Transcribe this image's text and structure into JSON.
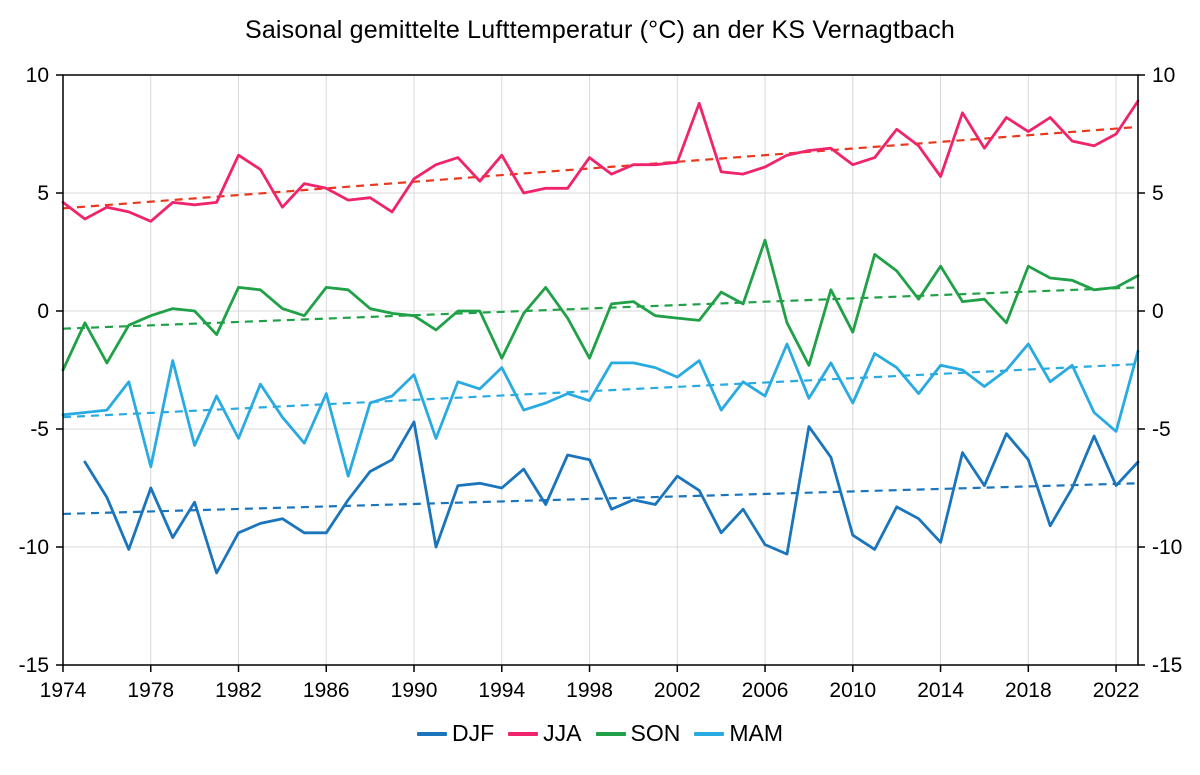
{
  "chart_data": {
    "type": "line",
    "title": "Saisonal gemittelte Lufttemperatur (°C) an der KS Vernagtbach",
    "xlabel": "",
    "ylabel": "",
    "xlim": [
      1974,
      2023
    ],
    "ylim": [
      -15,
      10
    ],
    "x_ticks": [
      1974,
      1978,
      1982,
      1986,
      1990,
      1994,
      1998,
      2002,
      2006,
      2010,
      2014,
      2018,
      2022
    ],
    "y_ticks": [
      -15,
      -10,
      -5,
      0,
      5,
      10
    ],
    "grid": true,
    "grid_color": "#d9d9d9",
    "axis_color": "#000000",
    "legend_position": "bottom",
    "x": [
      1974,
      1975,
      1976,
      1977,
      1978,
      1979,
      1980,
      1981,
      1982,
      1983,
      1984,
      1985,
      1986,
      1987,
      1988,
      1989,
      1990,
      1991,
      1992,
      1993,
      1994,
      1995,
      1996,
      1997,
      1998,
      1999,
      2000,
      2001,
      2002,
      2003,
      2004,
      2005,
      2006,
      2007,
      2008,
      2009,
      2010,
      2011,
      2012,
      2013,
      2014,
      2015,
      2016,
      2017,
      2018,
      2019,
      2020,
      2021,
      2022,
      2023
    ],
    "series": [
      {
        "name": "DJF",
        "color": "#1b75bc",
        "values": [
          null,
          -6.4,
          -7.9,
          -10.1,
          -7.5,
          -9.6,
          -8.1,
          -11.1,
          -9.4,
          -9.0,
          -8.8,
          -9.4,
          -9.4,
          -8.0,
          -6.8,
          -6.3,
          -4.7,
          -10.0,
          -7.4,
          -7.3,
          -7.5,
          -6.7,
          -8.2,
          -6.1,
          -6.3,
          -8.4,
          -8.0,
          -8.2,
          -7.0,
          -7.6,
          -9.4,
          -8.4,
          -9.9,
          -10.3,
          -4.9,
          -6.2,
          -9.5,
          -10.1,
          -8.3,
          -8.8,
          -9.8,
          -6.0,
          -7.4,
          -5.2,
          -6.3,
          -9.1,
          -7.5,
          -5.3,
          -7.4,
          -6.4
        ]
      },
      {
        "name": "JJA",
        "color": "#f0246c",
        "values": [
          4.6,
          3.9,
          4.4,
          4.2,
          3.8,
          4.6,
          4.5,
          4.6,
          6.6,
          6.0,
          4.4,
          5.4,
          5.2,
          4.7,
          4.8,
          4.2,
          5.6,
          6.2,
          6.5,
          5.5,
          6.6,
          5.0,
          5.2,
          5.2,
          6.5,
          5.8,
          6.2,
          6.2,
          6.3,
          8.8,
          5.9,
          5.8,
          6.1,
          6.6,
          6.8,
          6.9,
          6.2,
          6.5,
          7.7,
          7.0,
          5.7,
          8.4,
          6.9,
          8.2,
          7.6,
          8.2,
          7.2,
          7.0,
          7.5,
          8.9
        ]
      },
      {
        "name": "SON",
        "color": "#21a147",
        "values": [
          -2.5,
          -0.5,
          -2.2,
          -0.6,
          -0.2,
          0.1,
          0.0,
          -1.0,
          1.0,
          0.9,
          0.1,
          -0.2,
          1.0,
          0.9,
          0.1,
          -0.1,
          -0.2,
          -0.8,
          0.0,
          0.0,
          -2.0,
          -0.1,
          1.0,
          -0.3,
          -2.0,
          0.3,
          0.4,
          -0.2,
          -0.3,
          -0.4,
          0.8,
          0.3,
          3.0,
          -0.5,
          -2.3,
          0.9,
          -0.9,
          2.4,
          1.7,
          0.5,
          1.9,
          0.4,
          0.5,
          -0.5,
          1.9,
          1.4,
          1.3,
          0.9,
          1.0,
          1.5
        ]
      },
      {
        "name": "MAM",
        "color": "#29abe2",
        "values": [
          -4.4,
          -4.3,
          -4.2,
          -3.0,
          -6.6,
          -2.1,
          -5.7,
          -3.6,
          -5.4,
          -3.1,
          -4.5,
          -5.6,
          -3.5,
          -7.0,
          -3.9,
          -3.6,
          -2.7,
          -5.4,
          -3.0,
          -3.3,
          -2.4,
          -4.2,
          -3.9,
          -3.5,
          -3.8,
          -2.2,
          -2.2,
          -2.4,
          -2.8,
          -2.1,
          -4.2,
          -3.0,
          -3.6,
          -1.4,
          -3.7,
          -2.2,
          -3.9,
          -1.8,
          -2.4,
          -3.5,
          -2.3,
          -2.5,
          -3.2,
          -2.5,
          -1.4,
          -3.0,
          -2.3,
          -4.3,
          -5.1,
          -1.7
        ]
      }
    ],
    "trend_lines": [
      {
        "name": "DJF-trend",
        "color": "#1b75bc",
        "start": -8.6,
        "end": -7.3,
        "style": "dashed"
      },
      {
        "name": "JJA-trend",
        "color": "#e8391f",
        "start": 4.35,
        "end": 7.8,
        "style": "dashed"
      },
      {
        "name": "SON-trend",
        "color": "#21a147",
        "start": -0.75,
        "end": 1.0,
        "style": "dashed"
      },
      {
        "name": "MAM-trend",
        "color": "#29abe2",
        "start": -4.5,
        "end": -2.25,
        "style": "dashed"
      }
    ],
    "legend": [
      "DJF",
      "JJA",
      "SON",
      "MAM"
    ]
  }
}
